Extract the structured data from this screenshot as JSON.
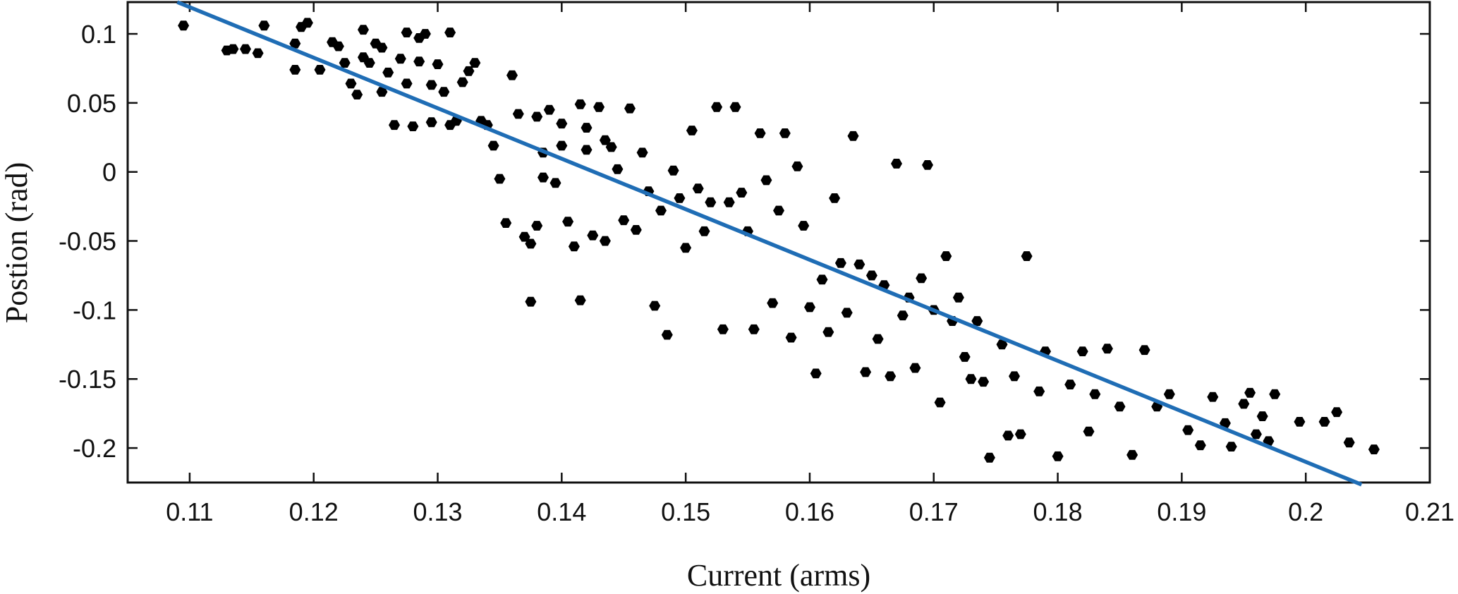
{
  "chart_data": {
    "type": "scatter",
    "xlabel": "Current (arms)",
    "ylabel": "Postion (rad)",
    "xlim": [
      0.105,
      0.21
    ],
    "ylim": [
      -0.225,
      0.123
    ],
    "x_ticks": [
      0.11,
      0.12,
      0.13,
      0.14,
      0.15,
      0.16,
      0.17,
      0.18,
      0.19,
      0.2,
      0.21
    ],
    "x_tick_labels": [
      "0.11",
      "0.12",
      "0.13",
      "0.14",
      "0.15",
      "0.16",
      "0.17",
      "0.18",
      "0.19",
      "0.2",
      "0.21"
    ],
    "y_ticks": [
      0.1,
      0.05,
      0,
      -0.05,
      -0.1,
      -0.15,
      -0.2
    ],
    "y_tick_labels": [
      "0.1",
      "0.05",
      "0",
      "-0.05",
      "-0.1",
      "-0.15",
      "-0.2"
    ],
    "grid": false,
    "legend": "none",
    "colors": {
      "points": "#000000",
      "fit_line": "#1f6db5"
    },
    "series": [
      {
        "kind": "scatter",
        "points": [
          [
            0.1095,
            0.106
          ],
          [
            0.113,
            0.088
          ],
          [
            0.1135,
            0.089
          ],
          [
            0.1145,
            0.089
          ],
          [
            0.1155,
            0.086
          ],
          [
            0.116,
            0.106
          ],
          [
            0.1185,
            0.093
          ],
          [
            0.1185,
            0.074
          ],
          [
            0.119,
            0.105
          ],
          [
            0.1195,
            0.108
          ],
          [
            0.1205,
            0.074
          ],
          [
            0.1215,
            0.094
          ],
          [
            0.122,
            0.091
          ],
          [
            0.1225,
            0.079
          ],
          [
            0.123,
            0.064
          ],
          [
            0.1235,
            0.056
          ],
          [
            0.124,
            0.083
          ],
          [
            0.124,
            0.103
          ],
          [
            0.1245,
            0.079
          ],
          [
            0.125,
            0.093
          ],
          [
            0.1255,
            0.09
          ],
          [
            0.1255,
            0.058
          ],
          [
            0.126,
            0.072
          ],
          [
            0.1265,
            0.034
          ],
          [
            0.127,
            0.082
          ],
          [
            0.1275,
            0.064
          ],
          [
            0.1275,
            0.101
          ],
          [
            0.128,
            0.033
          ],
          [
            0.1285,
            0.097
          ],
          [
            0.1285,
            0.08
          ],
          [
            0.129,
            0.1
          ],
          [
            0.1295,
            0.063
          ],
          [
            0.1295,
            0.036
          ],
          [
            0.13,
            0.078
          ],
          [
            0.1305,
            0.058
          ],
          [
            0.131,
            0.101
          ],
          [
            0.131,
            0.034
          ],
          [
            0.1315,
            0.037
          ],
          [
            0.132,
            0.065
          ],
          [
            0.1325,
            0.073
          ],
          [
            0.133,
            0.079
          ],
          [
            0.1335,
            0.037
          ],
          [
            0.134,
            0.034
          ],
          [
            0.1345,
            0.019
          ],
          [
            0.135,
            -0.005
          ],
          [
            0.1355,
            -0.037
          ],
          [
            0.136,
            0.07
          ],
          [
            0.1365,
            0.042
          ],
          [
            0.137,
            -0.047
          ],
          [
            0.1375,
            -0.052
          ],
          [
            0.1375,
            -0.094
          ],
          [
            0.138,
            0.04
          ],
          [
            0.138,
            -0.039
          ],
          [
            0.1385,
            0.014
          ],
          [
            0.1385,
            -0.004
          ],
          [
            0.139,
            0.045
          ],
          [
            0.1395,
            -0.008
          ],
          [
            0.14,
            0.035
          ],
          [
            0.14,
            0.019
          ],
          [
            0.1405,
            -0.036
          ],
          [
            0.141,
            -0.054
          ],
          [
            0.1415,
            0.049
          ],
          [
            0.1415,
            -0.093
          ],
          [
            0.142,
            0.032
          ],
          [
            0.142,
            0.016
          ],
          [
            0.1425,
            -0.046
          ],
          [
            0.143,
            0.047
          ],
          [
            0.1435,
            0.023
          ],
          [
            0.1435,
            -0.05
          ],
          [
            0.144,
            0.018
          ],
          [
            0.1445,
            0.002
          ],
          [
            0.145,
            -0.035
          ],
          [
            0.1455,
            0.046
          ],
          [
            0.146,
            -0.042
          ],
          [
            0.1465,
            0.014
          ],
          [
            0.147,
            -0.014
          ],
          [
            0.1475,
            -0.097
          ],
          [
            0.148,
            -0.028
          ],
          [
            0.1485,
            -0.118
          ],
          [
            0.149,
            0.001
          ],
          [
            0.1495,
            -0.019
          ],
          [
            0.15,
            -0.055
          ],
          [
            0.1505,
            0.03
          ],
          [
            0.151,
            -0.012
          ],
          [
            0.1515,
            -0.043
          ],
          [
            0.152,
            -0.022
          ],
          [
            0.1525,
            0.047
          ],
          [
            0.153,
            -0.114
          ],
          [
            0.1535,
            -0.022
          ],
          [
            0.154,
            0.047
          ],
          [
            0.1545,
            -0.015
          ],
          [
            0.155,
            -0.043
          ],
          [
            0.1555,
            -0.114
          ],
          [
            0.156,
            0.028
          ],
          [
            0.1565,
            -0.006
          ],
          [
            0.157,
            -0.095
          ],
          [
            0.1575,
            -0.028
          ],
          [
            0.158,
            0.028
          ],
          [
            0.1585,
            -0.12
          ],
          [
            0.159,
            0.004
          ],
          [
            0.1595,
            -0.039
          ],
          [
            0.16,
            -0.098
          ],
          [
            0.1605,
            -0.146
          ],
          [
            0.161,
            -0.078
          ],
          [
            0.1615,
            -0.116
          ],
          [
            0.162,
            -0.019
          ],
          [
            0.1625,
            -0.066
          ],
          [
            0.163,
            -0.102
          ],
          [
            0.1635,
            0.026
          ],
          [
            0.164,
            -0.067
          ],
          [
            0.1645,
            -0.145
          ],
          [
            0.165,
            -0.075
          ],
          [
            0.1655,
            -0.121
          ],
          [
            0.166,
            -0.082
          ],
          [
            0.1665,
            -0.148
          ],
          [
            0.167,
            0.006
          ],
          [
            0.1675,
            -0.104
          ],
          [
            0.168,
            -0.091
          ],
          [
            0.1685,
            -0.142
          ],
          [
            0.169,
            -0.077
          ],
          [
            0.1695,
            0.005
          ],
          [
            0.17,
            -0.1
          ],
          [
            0.1705,
            -0.167
          ],
          [
            0.171,
            -0.061
          ],
          [
            0.1715,
            -0.108
          ],
          [
            0.172,
            -0.091
          ],
          [
            0.1725,
            -0.134
          ],
          [
            0.173,
            -0.15
          ],
          [
            0.1735,
            -0.108
          ],
          [
            0.174,
            -0.152
          ],
          [
            0.1745,
            -0.207
          ],
          [
            0.1755,
            -0.125
          ],
          [
            0.176,
            -0.191
          ],
          [
            0.1765,
            -0.148
          ],
          [
            0.177,
            -0.19
          ],
          [
            0.1775,
            -0.061
          ],
          [
            0.1785,
            -0.159
          ],
          [
            0.179,
            -0.13
          ],
          [
            0.18,
            -0.206
          ],
          [
            0.181,
            -0.154
          ],
          [
            0.182,
            -0.13
          ],
          [
            0.1825,
            -0.188
          ],
          [
            0.183,
            -0.161
          ],
          [
            0.184,
            -0.128
          ],
          [
            0.185,
            -0.17
          ],
          [
            0.186,
            -0.205
          ],
          [
            0.187,
            -0.129
          ],
          [
            0.188,
            -0.17
          ],
          [
            0.189,
            -0.161
          ],
          [
            0.1905,
            -0.187
          ],
          [
            0.1915,
            -0.198
          ],
          [
            0.1925,
            -0.163
          ],
          [
            0.1935,
            -0.182
          ],
          [
            0.194,
            -0.199
          ],
          [
            0.195,
            -0.168
          ],
          [
            0.1955,
            -0.16
          ],
          [
            0.196,
            -0.19
          ],
          [
            0.1965,
            -0.177
          ],
          [
            0.197,
            -0.195
          ],
          [
            0.1975,
            -0.161
          ],
          [
            0.1995,
            -0.181
          ],
          [
            0.2015,
            -0.181
          ],
          [
            0.2025,
            -0.174
          ],
          [
            0.2035,
            -0.196
          ],
          [
            0.2055,
            -0.201
          ]
        ]
      },
      {
        "kind": "line",
        "points": [
          [
            0.109,
            0.123
          ],
          [
            0.2045,
            -0.2265
          ]
        ]
      }
    ]
  }
}
